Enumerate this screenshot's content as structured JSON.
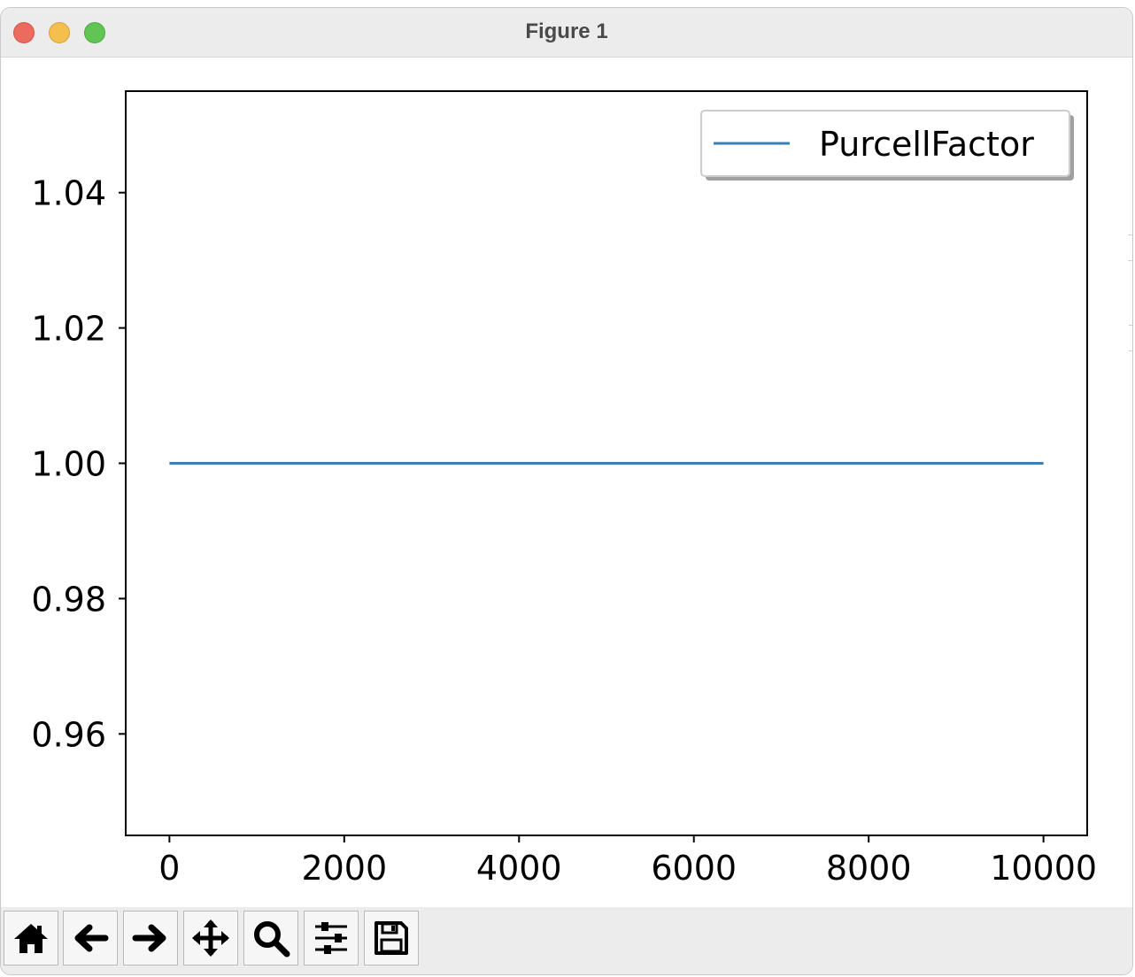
{
  "window": {
    "title": "Figure 1"
  },
  "toolbar": {
    "buttons": [
      {
        "name": "home-button",
        "icon": "home-icon"
      },
      {
        "name": "back-button",
        "icon": "arrow-left-icon"
      },
      {
        "name": "forward-button",
        "icon": "arrow-right-icon"
      },
      {
        "name": "pan-button",
        "icon": "move-icon"
      },
      {
        "name": "zoom-button",
        "icon": "search-icon"
      },
      {
        "name": "configure-subplots-button",
        "icon": "sliders-icon"
      },
      {
        "name": "save-button",
        "icon": "save-icon"
      }
    ]
  },
  "colors": {
    "series": "#3a7fb5",
    "axes": "#000000",
    "titlebar": "#ececec"
  },
  "chart_data": {
    "type": "line",
    "title": "",
    "xlabel": "",
    "ylabel": "",
    "xlim": [
      -500,
      10500
    ],
    "ylim": [
      0.945,
      1.055
    ],
    "xticks": [
      0,
      2000,
      4000,
      6000,
      8000,
      10000
    ],
    "xtick_labels": [
      "0",
      "2000",
      "4000",
      "6000",
      "8000",
      "10000"
    ],
    "yticks": [
      0.96,
      0.98,
      1.0,
      1.02,
      1.04
    ],
    "ytick_labels": [
      "0.96",
      "0.98",
      "1.00",
      "1.02",
      "1.04"
    ],
    "grid": false,
    "legend": {
      "position": "top-right"
    },
    "series": [
      {
        "name": "PurcellFactor",
        "color": "#3a7fb5",
        "x": [
          0,
          10000
        ],
        "y": [
          1.0,
          1.0
        ]
      }
    ]
  }
}
